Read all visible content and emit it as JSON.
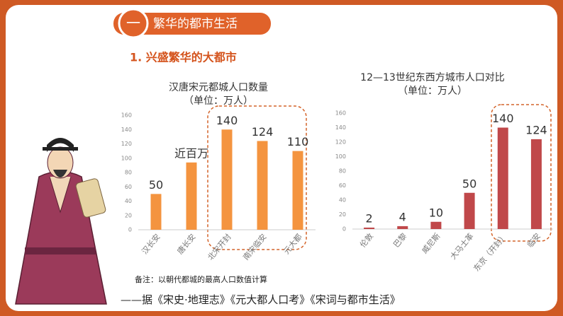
{
  "header": {
    "number": "一",
    "title": "繁华的都市生活",
    "section": "1. 兴盛繁华的大都市"
  },
  "chart_data": [
    {
      "type": "bar",
      "title": "汉唐宋元都城人口数量",
      "subtitle": "（单位：万人）",
      "categories": [
        "汉长安",
        "唐长安",
        "北宋开封",
        "南宋临安",
        "元大都"
      ],
      "values": [
        50,
        94,
        140,
        124,
        110
      ],
      "value_labels": [
        "50",
        "近百万",
        "140",
        "124",
        "110"
      ],
      "color": "#f4943f",
      "ylim": [
        0,
        160
      ],
      "yticks": [
        0,
        20,
        40,
        60,
        80,
        100,
        120,
        140,
        160
      ],
      "grid": false
    },
    {
      "type": "bar",
      "title": "12—13世纪东西方城市人口对比",
      "subtitle": "（单位：万人）",
      "categories": [
        "伦敦",
        "巴黎",
        "威尼斯",
        "大马士革",
        "东京（开封）",
        "临安"
      ],
      "values": [
        2,
        4,
        10,
        50,
        140,
        124
      ],
      "value_labels": [
        "2",
        "4",
        "10",
        "50",
        "140",
        "124"
      ],
      "color": "#c0484a",
      "ylim": [
        0,
        160
      ],
      "yticks": [
        0,
        20,
        40,
        60,
        80,
        100,
        120,
        140,
        160
      ],
      "grid": false
    }
  ],
  "footer": {
    "note": "备注：以朝代都城的最高人口数值计算",
    "source": "——据《宋史·地理志》《元大都人口考》《宋词与都市生活》"
  }
}
